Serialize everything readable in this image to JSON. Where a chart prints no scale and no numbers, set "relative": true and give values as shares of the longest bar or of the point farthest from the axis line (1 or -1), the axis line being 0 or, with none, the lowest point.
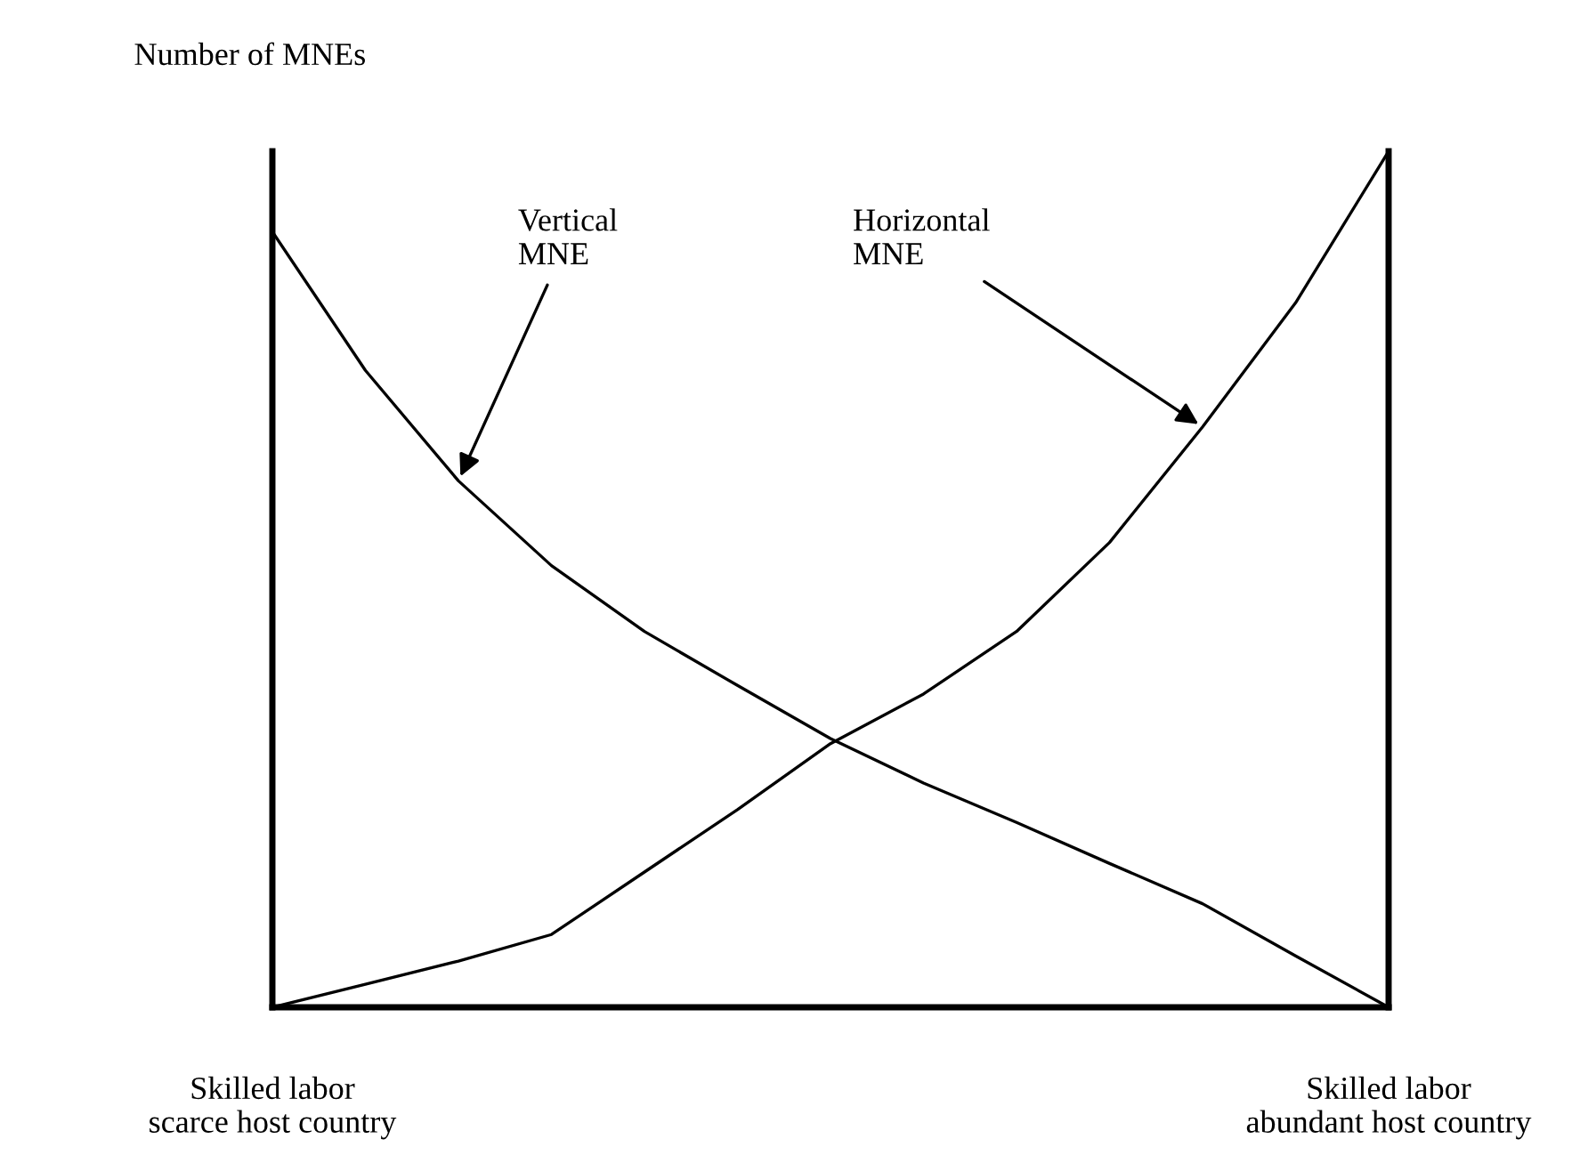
{
  "chart_data": {
    "type": "line",
    "relative": true,
    "ylabel": "Number of MNEs",
    "categories": [
      "Skilled labor\nscarce host country",
      null,
      null,
      null,
      null,
      null,
      null,
      null,
      null,
      null,
      null,
      null,
      "Skilled labor\nabundant host country"
    ],
    "series": [
      {
        "color": "#000000",
        "values": [
          0.906,
          0.744,
          0.615,
          0.516,
          0.439,
          0.376,
          0.314,
          0.262,
          0.216,
          0.168,
          0.121,
          0.06,
          0
        ]
      },
      {
        "color": "#000000",
        "values": [
          0,
          0.027,
          0.054,
          0.085,
          0.158,
          0.231,
          0.308,
          0.366,
          0.439,
          0.543,
          0.678,
          0.823,
          1
        ]
      }
    ],
    "annotations": [
      "Vertical\nMNE",
      "Horizontal\nMNE"
    ],
    "grid": false,
    "legend": false,
    "marker": "none",
    "line_style": "solid"
  }
}
